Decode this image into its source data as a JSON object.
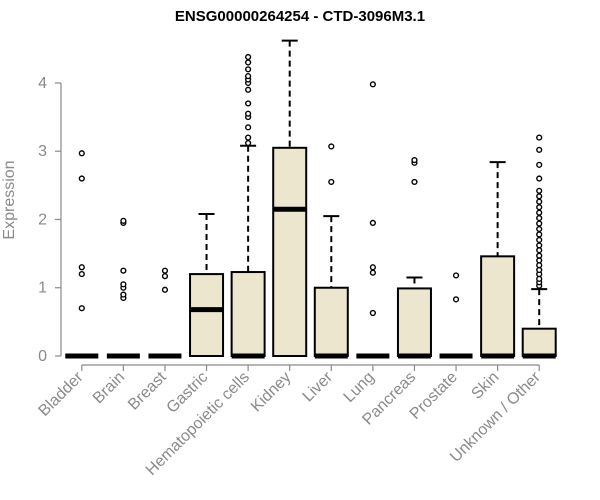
{
  "chart_data": {
    "type": "boxplot",
    "title": "ENSG00000264254 - CTD-3096M3.1",
    "xlabel": "",
    "ylabel": "Expression",
    "ylim": [
      0,
      4.6
    ],
    "yticks": [
      0,
      1,
      2,
      3,
      4
    ],
    "grid": false,
    "colors": {
      "box_fill": "#ede6cf",
      "box_stroke": "#000000",
      "axis": "#8a8a8a",
      "text_muted": "#8a8a8a"
    },
    "categories": [
      "Bladder",
      "Brain",
      "Breast",
      "Gastric",
      "Hematopoietic cells",
      "Kidney",
      "Liver",
      "Lung",
      "Pancreas",
      "Prostate",
      "Skin",
      "Unknown / Other"
    ],
    "boxes": [
      {
        "category": "Bladder",
        "q1": 0,
        "median": 0,
        "q3": 0,
        "whisker_low": 0,
        "whisker_high": 0,
        "outliers": [
          0.7,
          1.2,
          1.3,
          2.6,
          2.97
        ]
      },
      {
        "category": "Brain",
        "q1": 0,
        "median": 0,
        "q3": 0,
        "whisker_low": 0,
        "whisker_high": 0,
        "outliers": [
          0.85,
          0.9,
          1.0,
          1.05,
          1.25,
          1.95,
          1.98
        ]
      },
      {
        "category": "Breast",
        "q1": 0,
        "median": 0,
        "q3": 0,
        "whisker_low": 0,
        "whisker_high": 0,
        "outliers": [
          0.97,
          1.17,
          1.25
        ]
      },
      {
        "category": "Gastric",
        "q1": 0,
        "median": 0.68,
        "q3": 1.2,
        "whisker_low": 0,
        "whisker_high": 2.08,
        "outliers": []
      },
      {
        "category": "Hematopoietic cells",
        "q1": 0,
        "median": 0,
        "q3": 1.23,
        "whisker_low": 0,
        "whisker_high": 3.08,
        "outliers": [
          3.12,
          3.2,
          3.35,
          3.5,
          3.55,
          3.7,
          3.9,
          4.0,
          4.05,
          4.1,
          4.2,
          4.3,
          4.38
        ]
      },
      {
        "category": "Kidney",
        "q1": 0,
        "median": 2.15,
        "q3": 3.05,
        "whisker_low": 0,
        "whisker_high": 4.62,
        "outliers": []
      },
      {
        "category": "Liver",
        "q1": 0,
        "median": 0,
        "q3": 1.0,
        "whisker_low": 0,
        "whisker_high": 2.05,
        "outliers": [
          2.55,
          3.07
        ]
      },
      {
        "category": "Lung",
        "q1": 0,
        "median": 0,
        "q3": 0,
        "whisker_low": 0,
        "whisker_high": 0,
        "outliers": [
          0.63,
          1.22,
          1.3,
          1.95,
          3.98
        ]
      },
      {
        "category": "Pancreas",
        "q1": 0,
        "median": 0,
        "q3": 0.99,
        "whisker_low": 0,
        "whisker_high": 1.15,
        "outliers": [
          2.55,
          2.83,
          2.87
        ]
      },
      {
        "category": "Prostate",
        "q1": 0,
        "median": 0,
        "q3": 0,
        "whisker_low": 0,
        "whisker_high": 0,
        "outliers": [
          0.83,
          1.18
        ]
      },
      {
        "category": "Skin",
        "q1": 0,
        "median": 0,
        "q3": 1.46,
        "whisker_low": 0,
        "whisker_high": 2.84,
        "outliers": []
      },
      {
        "category": "Unknown / Other",
        "q1": 0,
        "median": 0,
        "q3": 0.4,
        "whisker_low": 0,
        "whisker_high": 0.98,
        "outliers": [
          1.03,
          1.08,
          1.13,
          1.2,
          1.26,
          1.33,
          1.4,
          1.47,
          1.55,
          1.62,
          1.7,
          1.78,
          1.86,
          1.94,
          2.02,
          2.1,
          2.18,
          2.26,
          2.34,
          2.42,
          2.6,
          2.8,
          3.02,
          3.2
        ]
      }
    ]
  }
}
